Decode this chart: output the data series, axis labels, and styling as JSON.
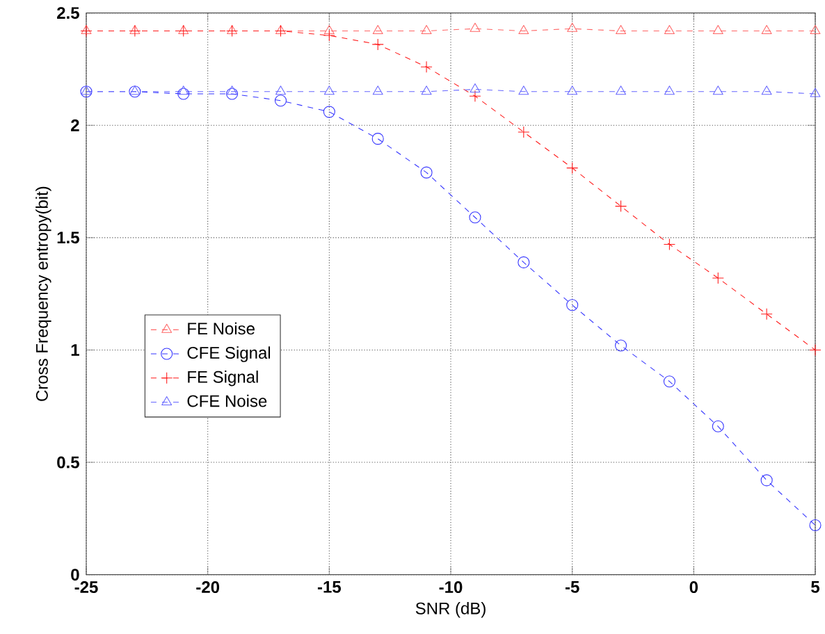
{
  "chart_data": {
    "type": "line",
    "xlabel": "SNR (dB)",
    "ylabel": "Cross Frequency entropy(bit)",
    "x": [
      -25,
      -23,
      -21,
      -19,
      -17,
      -15,
      -13,
      -11,
      -9,
      -7,
      -5,
      -3,
      -1,
      1,
      3,
      5
    ],
    "series": [
      {
        "name": "FE Noise",
        "color": "#ff6666",
        "marker": "triangle",
        "values": [
          2.42,
          2.42,
          2.42,
          2.42,
          2.42,
          2.42,
          2.42,
          2.42,
          2.43,
          2.42,
          2.43,
          2.42,
          2.42,
          2.42,
          2.42,
          2.42
        ]
      },
      {
        "name": "CFE Signal",
        "color": "#3333ff",
        "marker": "circle",
        "values": [
          2.15,
          2.15,
          2.14,
          2.14,
          2.11,
          2.06,
          1.94,
          1.79,
          1.59,
          1.39,
          1.2,
          1.02,
          0.86,
          0.66,
          0.42,
          0.22
        ]
      },
      {
        "name": "FE Signal",
        "color": "#ff1a1a",
        "marker": "cross",
        "values": [
          2.42,
          2.42,
          2.42,
          2.42,
          2.42,
          2.4,
          2.36,
          2.26,
          2.13,
          1.97,
          1.81,
          1.64,
          1.47,
          1.32,
          1.16,
          1.0
        ]
      },
      {
        "name": "CFE Noise",
        "color": "#6666ff",
        "marker": "triangle",
        "values": [
          2.15,
          2.15,
          2.15,
          2.15,
          2.15,
          2.15,
          2.15,
          2.15,
          2.16,
          2.15,
          2.15,
          2.15,
          2.15,
          2.15,
          2.15,
          2.14
        ]
      }
    ],
    "xlim": [
      -25,
      5
    ],
    "xticks": [
      -25,
      -20,
      -15,
      -10,
      -5,
      0,
      5
    ],
    "ylim": [
      0,
      2.5
    ],
    "yticks": [
      0,
      0.5,
      1,
      1.5,
      2,
      2.5
    ],
    "grid": true,
    "legend": "bottom left",
    "line_style": "dashed"
  }
}
